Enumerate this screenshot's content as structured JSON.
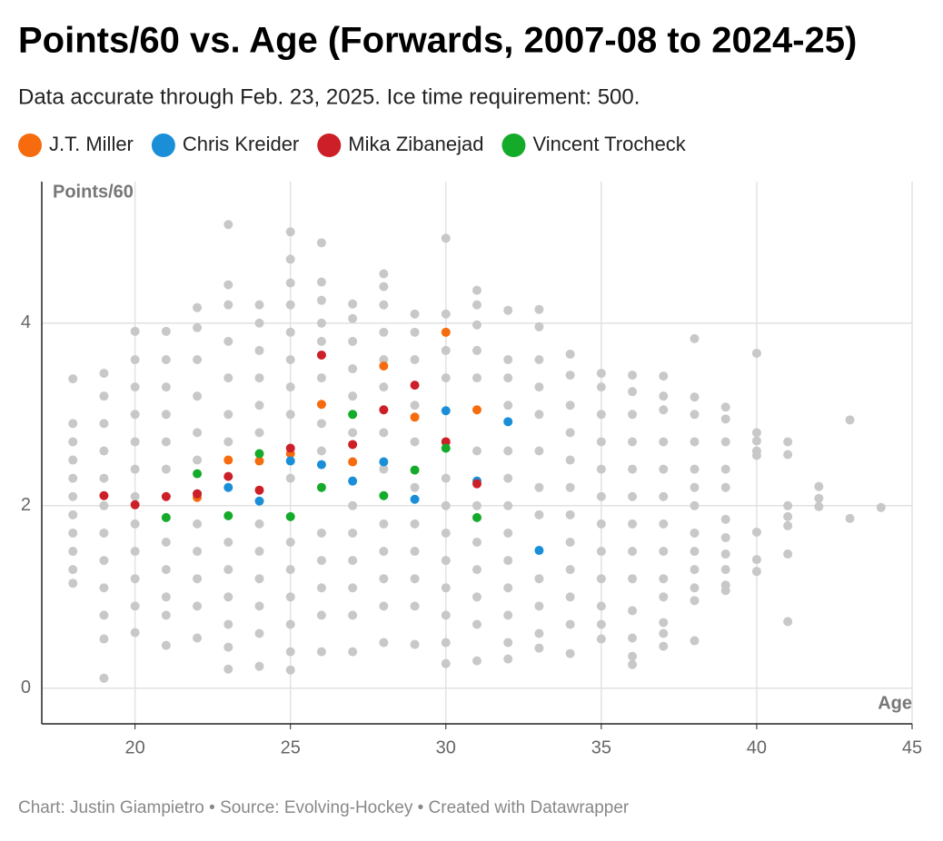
{
  "chart_data": {
    "type": "scatter",
    "title": "Points/60 vs. Age (Forwards, 2007-08 to 2024-25)",
    "subtitle": "Data accurate through Feb. 23, 2025. Ice time requirement: 500.",
    "y_label": "Points/60",
    "x_label": "Age",
    "footer": "Chart: Justin Giampietro • Source: Evolving-Hockey • Created with Datawrapper",
    "xlim": [
      17,
      45
    ],
    "ylim": [
      -0.39,
      5.55
    ],
    "xticks": [
      20,
      25,
      30,
      35,
      40,
      45
    ],
    "yticks": [
      0,
      2,
      4
    ],
    "grid": true,
    "series": [
      {
        "color": "#c8c8c8",
        "x": [
          18,
          18,
          18,
          18,
          18,
          18,
          18,
          18,
          18,
          18,
          18
        ],
        "values": [
          3.39,
          2.9,
          2.7,
          2.5,
          2.3,
          2.1,
          1.9,
          1.7,
          1.5,
          1.3,
          1.15
        ]
      },
      {
        "color": "#c8c8c8",
        "x": [
          19,
          19,
          19,
          19,
          19,
          19,
          19,
          19,
          19,
          19,
          19,
          19
        ],
        "values": [
          3.45,
          3.2,
          2.9,
          2.6,
          2.3,
          2.0,
          1.7,
          1.4,
          1.1,
          0.8,
          0.54,
          0.11
        ]
      },
      {
        "color": "#c8c8c8",
        "x": [
          20,
          20,
          20,
          20,
          20,
          20,
          20,
          20,
          20,
          20,
          20,
          20
        ],
        "values": [
          3.91,
          3.6,
          3.3,
          3.0,
          2.7,
          2.4,
          2.1,
          1.8,
          1.5,
          1.2,
          0.9,
          0.61
        ]
      },
      {
        "color": "#c8c8c8",
        "x": [
          21,
          21,
          21,
          21,
          21,
          21,
          21,
          21,
          21,
          21,
          21
        ],
        "values": [
          3.91,
          3.6,
          3.3,
          3.0,
          2.7,
          2.4,
          1.6,
          1.3,
          1.0,
          0.8,
          0.47
        ]
      },
      {
        "color": "#c8c8c8",
        "x": [
          22,
          22,
          22,
          22,
          22,
          22,
          22,
          22,
          22,
          22,
          22
        ],
        "values": [
          4.17,
          3.95,
          3.6,
          3.2,
          2.8,
          2.5,
          1.8,
          1.5,
          1.2,
          0.9,
          0.55
        ]
      },
      {
        "color": "#c8c8c8",
        "x": [
          23,
          23,
          23,
          23,
          23,
          23,
          23,
          23,
          23,
          23,
          23,
          23,
          23
        ],
        "values": [
          5.08,
          4.42,
          4.2,
          3.8,
          3.4,
          3.0,
          2.7,
          1.6,
          1.3,
          1.0,
          0.7,
          0.45,
          0.21
        ]
      },
      {
        "color": "#c8c8c8",
        "x": [
          24,
          24,
          24,
          24,
          24,
          24,
          24,
          24,
          24,
          24,
          24,
          24
        ],
        "values": [
          4.2,
          4.0,
          3.7,
          3.4,
          3.1,
          2.8,
          1.8,
          1.5,
          1.2,
          0.9,
          0.6,
          0.24
        ]
      },
      {
        "color": "#c8c8c8",
        "x": [
          25,
          25,
          25,
          25,
          25,
          25,
          25,
          25,
          25,
          25,
          25,
          25,
          25,
          25,
          25
        ],
        "values": [
          5.0,
          4.7,
          4.44,
          4.2,
          3.9,
          3.6,
          3.3,
          3.0,
          2.3,
          1.6,
          1.3,
          1.0,
          0.7,
          0.4,
          0.2
        ]
      },
      {
        "color": "#c8c8c8",
        "x": [
          26,
          26,
          26,
          26,
          26,
          26,
          26,
          26,
          26,
          26,
          26,
          26,
          26
        ],
        "values": [
          4.88,
          4.45,
          4.25,
          4.0,
          3.8,
          3.4,
          2.9,
          2.6,
          1.7,
          1.4,
          1.1,
          0.8,
          0.4
        ]
      },
      {
        "color": "#c8c8c8",
        "x": [
          27,
          27,
          27,
          27,
          27,
          27,
          27,
          27,
          27,
          27,
          27,
          27
        ],
        "values": [
          4.21,
          4.05,
          3.8,
          3.5,
          3.2,
          2.8,
          2.0,
          1.7,
          1.4,
          1.1,
          0.8,
          0.4
        ]
      },
      {
        "color": "#c8c8c8",
        "x": [
          28,
          28,
          28,
          28,
          28,
          28,
          28,
          28,
          28,
          28,
          28,
          28,
          28
        ],
        "values": [
          4.54,
          4.4,
          4.2,
          3.9,
          3.6,
          3.3,
          2.8,
          2.4,
          1.8,
          1.5,
          1.2,
          0.9,
          0.5
        ]
      },
      {
        "color": "#c8c8c8",
        "x": [
          29,
          29,
          29,
          29,
          29,
          29,
          29,
          29,
          29,
          29,
          29
        ],
        "values": [
          4.1,
          3.9,
          3.6,
          3.1,
          2.7,
          2.2,
          1.8,
          1.5,
          1.2,
          0.9,
          0.48
        ]
      },
      {
        "color": "#c8c8c8",
        "x": [
          30,
          30,
          30,
          30,
          30,
          30,
          30,
          30,
          30,
          30,
          30,
          30
        ],
        "values": [
          4.93,
          4.1,
          3.7,
          3.4,
          2.3,
          2.0,
          1.7,
          1.4,
          1.1,
          0.8,
          0.5,
          0.27
        ]
      },
      {
        "color": "#c8c8c8",
        "x": [
          31,
          31,
          31,
          31,
          31,
          31,
          31,
          31,
          31,
          31,
          31,
          31
        ],
        "values": [
          4.36,
          4.2,
          3.98,
          3.7,
          3.4,
          2.6,
          2.0,
          1.6,
          1.3,
          1.0,
          0.7,
          0.3
        ]
      },
      {
        "color": "#c8c8c8",
        "x": [
          32,
          32,
          32,
          32,
          32,
          32,
          32,
          32,
          32,
          32,
          32,
          32,
          32
        ],
        "values": [
          4.14,
          3.6,
          3.4,
          3.1,
          2.6,
          2.3,
          2.0,
          1.7,
          1.4,
          1.1,
          0.8,
          0.5,
          0.32
        ]
      },
      {
        "color": "#c8c8c8",
        "x": [
          33,
          33,
          33,
          33,
          33,
          33,
          33,
          33,
          33,
          33,
          33,
          33
        ],
        "values": [
          4.15,
          3.96,
          3.6,
          3.3,
          3.0,
          2.6,
          2.2,
          1.9,
          1.2,
          0.9,
          0.6,
          0.44
        ]
      },
      {
        "color": "#c8c8c8",
        "x": [
          34,
          34,
          34,
          34,
          34,
          34,
          34,
          34,
          34,
          34,
          34,
          34
        ],
        "values": [
          3.66,
          3.43,
          3.1,
          2.8,
          2.5,
          2.2,
          1.9,
          1.6,
          1.3,
          1.0,
          0.7,
          0.38
        ]
      },
      {
        "color": "#c8c8c8",
        "x": [
          35,
          35,
          35,
          35,
          35,
          35,
          35,
          35,
          35,
          35,
          35,
          35
        ],
        "values": [
          3.45,
          3.3,
          3.0,
          2.7,
          2.4,
          2.1,
          1.8,
          1.5,
          1.2,
          0.9,
          0.7,
          0.54
        ]
      },
      {
        "color": "#c8c8c8",
        "x": [
          36,
          36,
          36,
          36,
          36,
          36,
          36,
          36,
          36,
          36,
          36,
          36,
          36
        ],
        "values": [
          3.43,
          3.25,
          3.0,
          2.7,
          2.4,
          2.1,
          1.8,
          1.5,
          1.2,
          0.85,
          0.55,
          0.35,
          0.26
        ]
      },
      {
        "color": "#c8c8c8",
        "x": [
          37,
          37,
          37,
          37,
          37,
          37,
          37,
          37,
          37,
          37,
          37,
          37,
          37
        ],
        "values": [
          3.42,
          3.2,
          3.05,
          2.7,
          2.4,
          2.1,
          1.8,
          1.5,
          1.2,
          1.0,
          0.72,
          0.6,
          0.46
        ]
      },
      {
        "color": "#c8c8c8",
        "x": [
          38,
          38,
          38,
          38,
          38,
          38,
          38,
          38,
          38,
          38,
          38,
          38,
          38
        ],
        "values": [
          3.83,
          3.19,
          3.0,
          2.7,
          2.4,
          2.2,
          2.0,
          1.7,
          1.5,
          1.3,
          1.1,
          0.96,
          0.52
        ]
      },
      {
        "color": "#c8c8c8",
        "x": [
          39,
          39,
          39,
          39,
          39,
          39,
          39,
          39,
          39,
          39,
          39
        ],
        "values": [
          3.08,
          2.95,
          2.7,
          2.4,
          2.2,
          1.85,
          1.65,
          1.47,
          1.3,
          1.13,
          1.07
        ]
      },
      {
        "color": "#c8c8c8",
        "x": [
          40,
          40,
          40,
          40,
          40,
          40,
          40,
          40
        ],
        "values": [
          3.67,
          2.8,
          2.71,
          2.6,
          2.55,
          1.71,
          1.41,
          1.28
        ]
      },
      {
        "color": "#c8c8c8",
        "x": [
          41,
          41,
          41,
          41,
          41,
          41,
          41
        ],
        "values": [
          2.7,
          2.56,
          2.0,
          1.88,
          1.78,
          1.47,
          0.73
        ]
      },
      {
        "color": "#c8c8c8",
        "x": [
          42,
          42,
          42
        ],
        "values": [
          2.21,
          2.08,
          1.99
        ]
      },
      {
        "color": "#c8c8c8",
        "x": [
          43,
          43
        ],
        "values": [
          2.94,
          1.86
        ]
      },
      {
        "color": "#c8c8c8",
        "x": [
          44
        ],
        "values": [
          1.98
        ]
      },
      {
        "name": "J.T. Miller",
        "color": "#f66b0e",
        "x": [
          22,
          23,
          24,
          25,
          26,
          27,
          28,
          29,
          30,
          31
        ],
        "values": [
          2.09,
          2.5,
          2.49,
          2.57,
          3.11,
          2.48,
          3.53,
          2.97,
          3.9,
          3.05
        ]
      },
      {
        "name": "Chris Kreider",
        "color": "#1a8fd8",
        "x": [
          22,
          23,
          24,
          25,
          26,
          27,
          28,
          29,
          30,
          31,
          32,
          33
        ],
        "values": [
          2.13,
          2.2,
          2.05,
          2.49,
          2.45,
          2.27,
          2.48,
          2.07,
          3.04,
          2.27,
          2.92,
          1.51
        ]
      },
      {
        "name": "Mika Zibanejad",
        "color": "#cc1f27",
        "x": [
          19,
          20,
          21,
          22,
          23,
          24,
          25,
          26,
          27,
          28,
          29,
          30,
          31
        ],
        "values": [
          2.11,
          2.01,
          2.1,
          2.13,
          2.32,
          2.17,
          2.63,
          3.65,
          2.67,
          3.05,
          3.32,
          2.7,
          2.24
        ]
      },
      {
        "name": "Vincent Trocheck",
        "color": "#14aa2a",
        "x": [
          21,
          22,
          23,
          24,
          25,
          26,
          27,
          28,
          29,
          30,
          31
        ],
        "values": [
          1.87,
          2.35,
          1.89,
          2.57,
          1.88,
          2.2,
          3.0,
          2.11,
          2.39,
          2.63,
          1.87
        ]
      }
    ]
  }
}
